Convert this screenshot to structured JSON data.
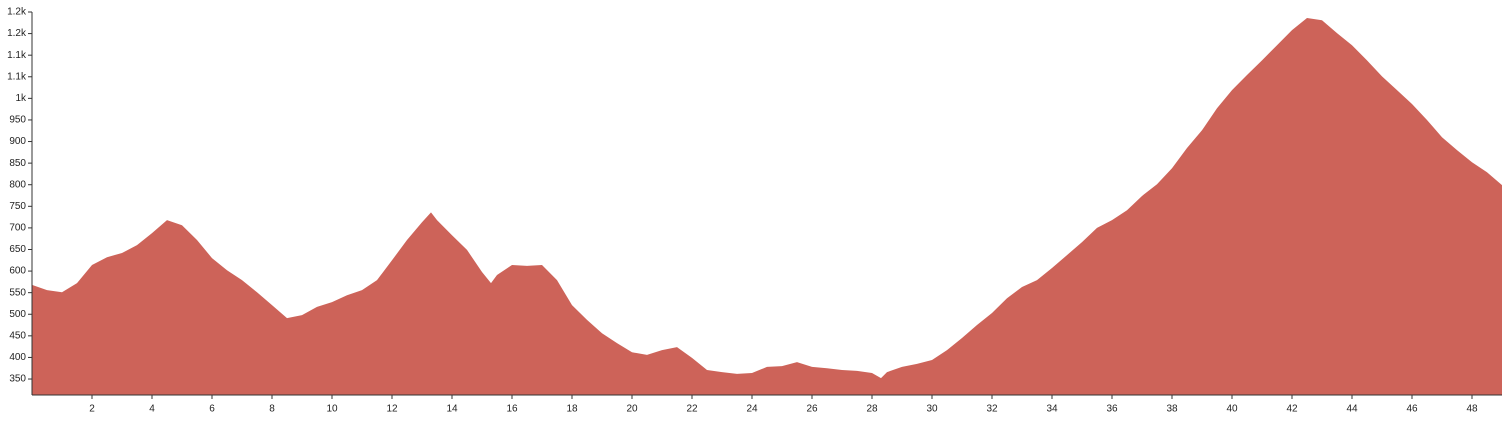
{
  "chart_data": {
    "type": "area",
    "color": "#cd6359",
    "x": [
      0,
      0.5,
      1,
      1.5,
      2,
      2.5,
      3,
      3.5,
      4,
      4.5,
      5,
      5.5,
      6,
      6.5,
      7,
      7.5,
      8,
      8.5,
      9,
      9.5,
      10,
      10.5,
      11,
      11.5,
      12,
      12.5,
      13,
      13.3,
      13.5,
      14,
      14.5,
      15,
      15.3,
      15.5,
      16,
      16.5,
      17,
      17.5,
      18,
      18.5,
      19,
      19.5,
      20,
      20.5,
      21,
      21.5,
      22,
      22.5,
      23,
      23.5,
      24,
      24.5,
      25,
      25.5,
      26,
      26.5,
      27,
      27.5,
      28,
      28.3,
      28.5,
      29,
      29.5,
      30,
      30.5,
      31,
      31.5,
      32,
      32.5,
      33,
      33.5,
      34,
      34.5,
      35,
      35.5,
      36,
      36.5,
      37,
      37.5,
      38,
      38.5,
      39,
      39.5,
      40,
      40.5,
      41,
      41.5,
      42,
      42.5,
      43,
      43.5,
      44,
      44.5,
      45,
      45.5,
      46,
      46.5,
      47,
      47.5,
      48,
      48.5,
      49
    ],
    "values": [
      568,
      556,
      551,
      572,
      614,
      632,
      642,
      660,
      688,
      718,
      706,
      672,
      630,
      602,
      579,
      551,
      521,
      491,
      498,
      517,
      528,
      544,
      556,
      579,
      625,
      672,
      713,
      736,
      718,
      683,
      649,
      598,
      572,
      591,
      614,
      612,
      614,
      579,
      521,
      487,
      456,
      433,
      412,
      406,
      417,
      424,
      399,
      371,
      366,
      362,
      364,
      378,
      380,
      389,
      378,
      375,
      371,
      369,
      364,
      352,
      366,
      378,
      385,
      394,
      417,
      445,
      475,
      503,
      537,
      563,
      579,
      607,
      637,
      667,
      700,
      718,
      741,
      774,
      801,
      838,
      885,
      926,
      977,
      1019,
      1054,
      1088,
      1123,
      1158,
      1186,
      1181,
      1151,
      1123,
      1088,
      1051,
      1019,
      987,
      950,
      910,
      880,
      852,
      829,
      799
    ],
    "xlim": [
      0,
      49
    ],
    "xticks": [
      2,
      4,
      6,
      8,
      10,
      12,
      14,
      16,
      18,
      20,
      22,
      24,
      26,
      28,
      30,
      32,
      34,
      36,
      38,
      40,
      42,
      44,
      46,
      48
    ],
    "ylim": [
      313,
      1200
    ],
    "yticks": [
      350,
      400,
      450,
      500,
      550,
      600,
      650,
      700,
      750,
      800,
      850,
      900,
      950,
      {
        "value": 1000,
        "label": "1k"
      },
      {
        "value": 1050,
        "label": "1.1k"
      },
      {
        "value": 1100,
        "label": "1.1k"
      },
      {
        "value": 1150,
        "label": "1.2k"
      },
      {
        "value": 1200,
        "label": "1.2k"
      }
    ]
  }
}
